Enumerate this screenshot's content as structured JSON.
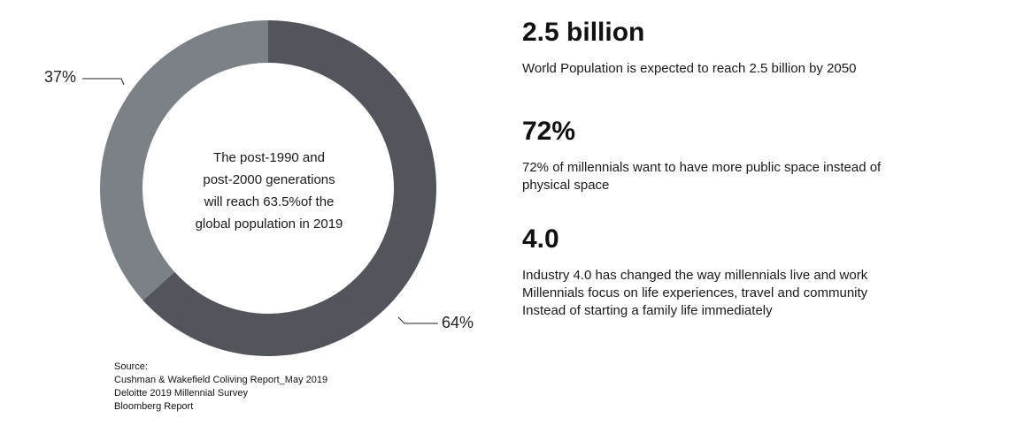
{
  "chart_data": {
    "type": "pie",
    "variant": "donut",
    "slices": [
      {
        "label": "64%",
        "value": 64,
        "color": "#52555c"
      },
      {
        "label": "37%",
        "value": 37,
        "color": "#7c8087"
      }
    ],
    "center_text": [
      "The post-1990 and",
      "post-2000 generations",
      "will reach 63.5%of the",
      "global population in 2019"
    ]
  },
  "source": {
    "heading": "Source:",
    "lines": [
      "Cushman & Wakefield Coliving Report_May 2019",
      "Deloitte 2019 Millennial Survey",
      "Bloomberg Report"
    ]
  },
  "stats": [
    {
      "value": "2.5 billion",
      "lines": [
        "World Population is expected to reach 2.5 billion by 2050"
      ]
    },
    {
      "value": "72%",
      "lines": [
        "72% of millennials want to have more public space instead of",
        "physical space"
      ]
    },
    {
      "value": "4.0",
      "lines": [
        "Industry 4.0 has changed the way millennials live and work",
        "Millennials focus on life experiences, travel and community",
        "Instead of starting a family life immediately"
      ]
    }
  ]
}
